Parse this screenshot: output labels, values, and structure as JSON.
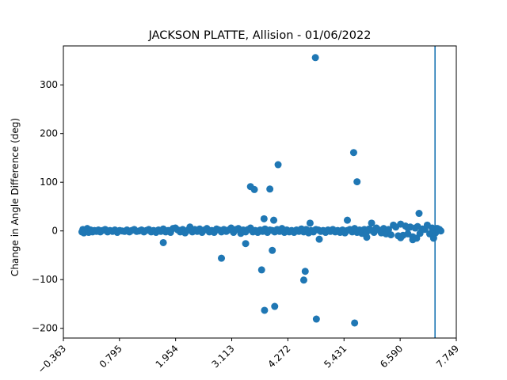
{
  "chart_data": {
    "type": "scatter",
    "title": "JACKSON PLATTE, Allision - 01/06/2022",
    "xlabel": "",
    "ylabel": "Change in Angle Difference (deg)",
    "xlim": [
      -0.363,
      7.749
    ],
    "ylim": [
      -220,
      380
    ],
    "x_ticks": [
      "−0.363",
      "0.795",
      "1.954",
      "3.113",
      "4.272",
      "5.431",
      "6.590",
      "7.749"
    ],
    "x_tick_values": [
      -0.363,
      0.795,
      1.954,
      3.113,
      4.272,
      5.431,
      6.59,
      7.749
    ],
    "y_ticks": [
      -200,
      -100,
      0,
      100,
      200,
      300
    ],
    "x_tick_rotation": 45,
    "grid": false,
    "legend": false,
    "marker_color": "#1f77b4",
    "vline": {
      "x": 7.31,
      "color": "#1f77b4"
    },
    "series": [
      {
        "points": [
          [
            0.02,
            -2
          ],
          [
            0.04,
            3
          ],
          [
            0.06,
            -4
          ],
          [
            0.08,
            1
          ],
          [
            0.1,
            -1
          ],
          [
            0.13,
            5
          ],
          [
            0.16,
            -3
          ],
          [
            0.2,
            2
          ],
          [
            0.24,
            -2
          ],
          [
            0.28,
            1
          ],
          [
            0.32,
            -1
          ],
          [
            0.36,
            2
          ],
          [
            0.4,
            -2
          ],
          [
            0.45,
            1
          ],
          [
            0.5,
            3
          ],
          [
            0.55,
            -2
          ],
          [
            0.6,
            1
          ],
          [
            0.65,
            -1
          ],
          [
            0.7,
            2
          ],
          [
            0.75,
            -3
          ],
          [
            0.8,
            1
          ],
          [
            0.85,
            0
          ],
          [
            0.9,
            -1
          ],
          [
            0.95,
            2
          ],
          [
            1.0,
            -2
          ],
          [
            1.05,
            1
          ],
          [
            1.1,
            3
          ],
          [
            1.15,
            -1
          ],
          [
            1.2,
            0
          ],
          [
            1.25,
            2
          ],
          [
            1.3,
            -2
          ],
          [
            1.35,
            1
          ],
          [
            1.4,
            3
          ],
          [
            1.45,
            -2
          ],
          [
            1.5,
            1
          ],
          [
            1.55,
            -3
          ],
          [
            1.6,
            2
          ],
          [
            1.65,
            -1
          ],
          [
            1.7,
            4
          ],
          [
            1.75,
            -2
          ],
          [
            1.8,
            1
          ],
          [
            1.85,
            -3
          ],
          [
            1.9,
            5
          ],
          [
            1.95,
            6
          ],
          [
            2.0,
            2
          ],
          [
            2.05,
            -2
          ],
          [
            2.1,
            3
          ],
          [
            2.15,
            -4
          ],
          [
            2.2,
            1
          ],
          [
            2.25,
            8
          ],
          [
            2.3,
            -2
          ],
          [
            2.35,
            3
          ],
          [
            2.4,
            -1
          ],
          [
            2.45,
            4
          ],
          [
            2.5,
            -3
          ],
          [
            2.55,
            2
          ],
          [
            2.6,
            5
          ],
          [
            2.65,
            -2
          ],
          [
            2.7,
            1
          ],
          [
            2.75,
            -3
          ],
          [
            2.8,
            4
          ],
          [
            2.85,
            2
          ],
          [
            2.9,
            -2
          ],
          [
            2.95,
            3
          ],
          [
            3.0,
            -1
          ],
          [
            3.05,
            2
          ],
          [
            3.1,
            6
          ],
          [
            3.15,
            -3
          ],
          [
            3.2,
            3
          ],
          [
            3.25,
            5
          ],
          [
            3.3,
            -5
          ],
          [
            3.35,
            2
          ],
          [
            3.4,
            -2
          ],
          [
            3.45,
            3
          ],
          [
            3.5,
            6
          ],
          [
            3.55,
            -2
          ],
          [
            3.6,
            1
          ],
          [
            3.65,
            -3
          ],
          [
            3.7,
            2
          ],
          [
            3.75,
            -1
          ],
          [
            3.8,
            4
          ],
          [
            3.85,
            -3
          ],
          [
            3.9,
            2
          ],
          [
            3.95,
            1
          ],
          [
            4.0,
            -2
          ],
          [
            4.05,
            3
          ],
          [
            4.1,
            -1
          ],
          [
            4.15,
            5
          ],
          [
            4.2,
            -3
          ],
          [
            4.25,
            2
          ],
          [
            4.3,
            -2
          ],
          [
            4.35,
            1
          ],
          [
            4.4,
            -3
          ],
          [
            4.45,
            2
          ],
          [
            4.5,
            -1
          ],
          [
            4.55,
            4
          ],
          [
            4.6,
            -2
          ],
          [
            4.65,
            3
          ],
          [
            4.7,
            -4
          ],
          [
            4.75,
            1
          ],
          [
            4.8,
            -2
          ],
          [
            4.85,
            3
          ],
          [
            4.9,
            2
          ],
          [
            4.95,
            -1
          ],
          [
            5.0,
            1
          ],
          [
            5.05,
            -3
          ],
          [
            5.1,
            2
          ],
          [
            5.15,
            -1
          ],
          [
            5.2,
            3
          ],
          [
            5.25,
            -2
          ],
          [
            5.3,
            1
          ],
          [
            5.35,
            -3
          ],
          [
            5.4,
            2
          ],
          [
            5.45,
            -4
          ],
          [
            5.5,
            1
          ],
          [
            5.55,
            3
          ],
          [
            5.6,
            -2
          ],
          [
            5.65,
            5
          ],
          [
            5.7,
            -3
          ],
          [
            5.75,
            2
          ],
          [
            5.8,
            -5
          ],
          [
            5.85,
            3
          ],
          [
            5.9,
            -2
          ],
          [
            5.95,
            4
          ],
          [
            6.0,
            1
          ],
          [
            6.05,
            -3
          ],
          [
            6.1,
            6
          ],
          [
            6.15,
            2
          ],
          [
            6.2,
            -4
          ],
          [
            6.25,
            5
          ],
          [
            6.3,
            -6
          ],
          [
            6.35,
            3
          ],
          [
            6.4,
            -8
          ],
          [
            6.45,
            12
          ],
          [
            6.5,
            8
          ],
          [
            6.55,
            -10
          ],
          [
            6.6,
            14
          ],
          [
            6.65,
            -9
          ],
          [
            6.7,
            10
          ],
          [
            6.75,
            -6
          ],
          [
            6.8,
            8
          ],
          [
            6.85,
            -12
          ],
          [
            6.9,
            6
          ],
          [
            6.95,
            9
          ],
          [
            7.0,
            -5
          ],
          [
            7.05,
            4
          ],
          [
            7.1,
            3
          ],
          [
            7.15,
            12
          ],
          [
            7.2,
            -6
          ],
          [
            7.25,
            6
          ],
          [
            7.28,
            -15
          ],
          [
            7.32,
            -4
          ],
          [
            7.36,
            5
          ],
          [
            7.4,
            3
          ],
          [
            7.43,
            0
          ],
          [
            1.7,
            -24
          ],
          [
            2.9,
            -56
          ],
          [
            3.4,
            -26
          ],
          [
            3.5,
            91
          ],
          [
            3.58,
            85
          ],
          [
            3.73,
            -80
          ],
          [
            3.78,
            25
          ],
          [
            3.79,
            -163
          ],
          [
            3.9,
            86
          ],
          [
            3.95,
            -40
          ],
          [
            3.98,
            22
          ],
          [
            4.0,
            -155
          ],
          [
            4.07,
            136
          ],
          [
            4.6,
            -101
          ],
          [
            4.63,
            -83
          ],
          [
            4.73,
            16
          ],
          [
            4.84,
            356
          ],
          [
            4.86,
            -181
          ],
          [
            4.92,
            -17
          ],
          [
            5.5,
            22
          ],
          [
            5.63,
            161
          ],
          [
            5.65,
            -189
          ],
          [
            5.7,
            101
          ],
          [
            5.9,
            -13
          ],
          [
            6.0,
            16
          ],
          [
            6.85,
            -18
          ],
          [
            6.98,
            36
          ],
          [
            7.28,
            -14
          ],
          [
            7.34,
            5
          ],
          [
            6.93,
            -15
          ],
          [
            6.75,
            6
          ],
          [
            6.6,
            -14
          ]
        ]
      }
    ]
  }
}
